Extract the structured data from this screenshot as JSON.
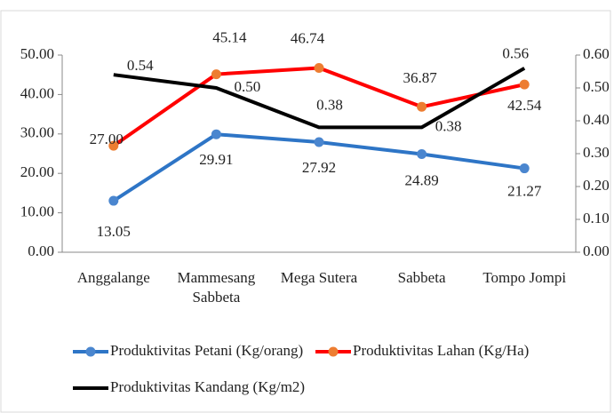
{
  "chart_data": {
    "type": "line",
    "categories": [
      "Anggalange",
      "Mammesang Sabbeta",
      "Mega Sutera",
      "Sabbeta",
      "Tompo Jompi"
    ],
    "series": [
      {
        "name": "Produktivitas Petani (Kg/orang)",
        "color": "#2e75c6",
        "marker_color": "#4a86cf",
        "values": [
          13.05,
          29.91,
          27.92,
          24.89,
          21.27
        ],
        "value_labels": [
          "13.05",
          "29.91",
          "27.92",
          "24.89",
          "21.27"
        ]
      },
      {
        "name": "Produktivitas Lahan (Kg/Ha)",
        "color": "#ff0000",
        "marker_color": "#ed7d31",
        "values": [
          27.0,
          45.14,
          46.74,
          36.87,
          42.54
        ],
        "value_labels": [
          "27.00",
          "45.14",
          "46.74",
          "36.87",
          "42.54"
        ]
      },
      {
        "name": "Produktivitas Kandang (Kg/m2)",
        "color": "#000000",
        "axis": "y2",
        "values": [
          0.54,
          0.5,
          0.38,
          0.38,
          0.56
        ],
        "value_labels": [
          "0.54",
          "0.50",
          "0.38",
          "0.38",
          "0.56"
        ]
      }
    ],
    "ylim": [
      0,
      50
    ],
    "yticks": [
      {
        "value": 0,
        "label": "0.00"
      },
      {
        "value": 10,
        "label": "10.00"
      },
      {
        "value": 20,
        "label": "20.00"
      },
      {
        "value": 30,
        "label": "30.00"
      },
      {
        "value": 40,
        "label": "40.00"
      },
      {
        "value": 50,
        "label": "50.00"
      }
    ],
    "y2lim": [
      0,
      0.6
    ],
    "y2ticks": [
      {
        "value": 0,
        "label": "0.00"
      },
      {
        "value": 0.1,
        "label": "0.10"
      },
      {
        "value": 0.2,
        "label": "0.20"
      },
      {
        "value": 0.3,
        "label": "0.30"
      },
      {
        "value": 0.4,
        "label": "0.40"
      },
      {
        "value": 0.5,
        "label": "0.50"
      },
      {
        "value": 0.6,
        "label": "0.60"
      }
    ],
    "legend": "bottom"
  }
}
